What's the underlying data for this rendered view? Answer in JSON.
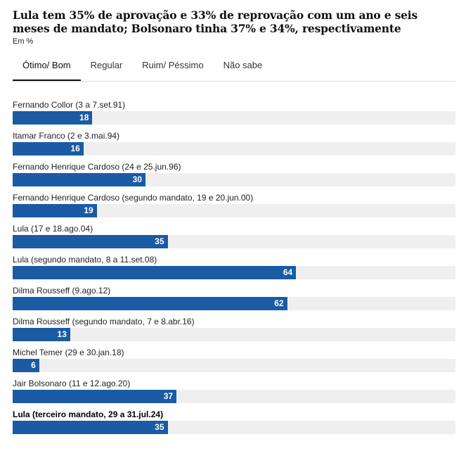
{
  "title": "Lula tem 35% de aprovação e 33% de reprovação com um ano e seis meses de mandato; Bolsonaro tinha 37% e 34%, respectivamente",
  "subtitle": "Em %",
  "tabs": [
    {
      "label": "Ótimo/ Bom",
      "active": true
    },
    {
      "label": "Regular",
      "active": false
    },
    {
      "label": "Ruim/ Péssimo",
      "active": false
    },
    {
      "label": "Não sabe",
      "active": false
    }
  ],
  "colors": {
    "bar": "#1a5ba4",
    "track": "#efefef"
  },
  "chart_data": {
    "type": "bar",
    "orientation": "horizontal",
    "title": "Lula tem 35% de aprovação e 33% de reprovação com um ano e seis meses de mandato; Bolsonaro tinha 37% e 34%, respectivamente",
    "unit": "Em %",
    "xlim": [
      0,
      100
    ],
    "categories": [
      "Fernando Collor (3 a 7.set.91)",
      "Itamar Franco (2 e 3.mai.94)",
      "Fernando Henrique Cardoso (24 e 25.jun.96)",
      "Fernando Henrique Cardoso (segundo mandato, 19 e 20.jun.00)",
      "Lula (17 e 18.ago.04)",
      "Lula (segundo mandato, 8 a 11.set.08)",
      "Dilma Rousseff (9.ago.12)",
      "Dilma Rousseff (segundo mandato, 7 e 8.abr.16)",
      "Michel Temer (29 e 30.jan.18)",
      "Jair Bolsonaro (11 e 12.ago.20)",
      "Lula (terceiro mandato, 29 a 31.jul.24)"
    ],
    "values": [
      18,
      16,
      30,
      19,
      35,
      64,
      62,
      13,
      6,
      37,
      35
    ],
    "highlighted": [
      10
    ]
  }
}
